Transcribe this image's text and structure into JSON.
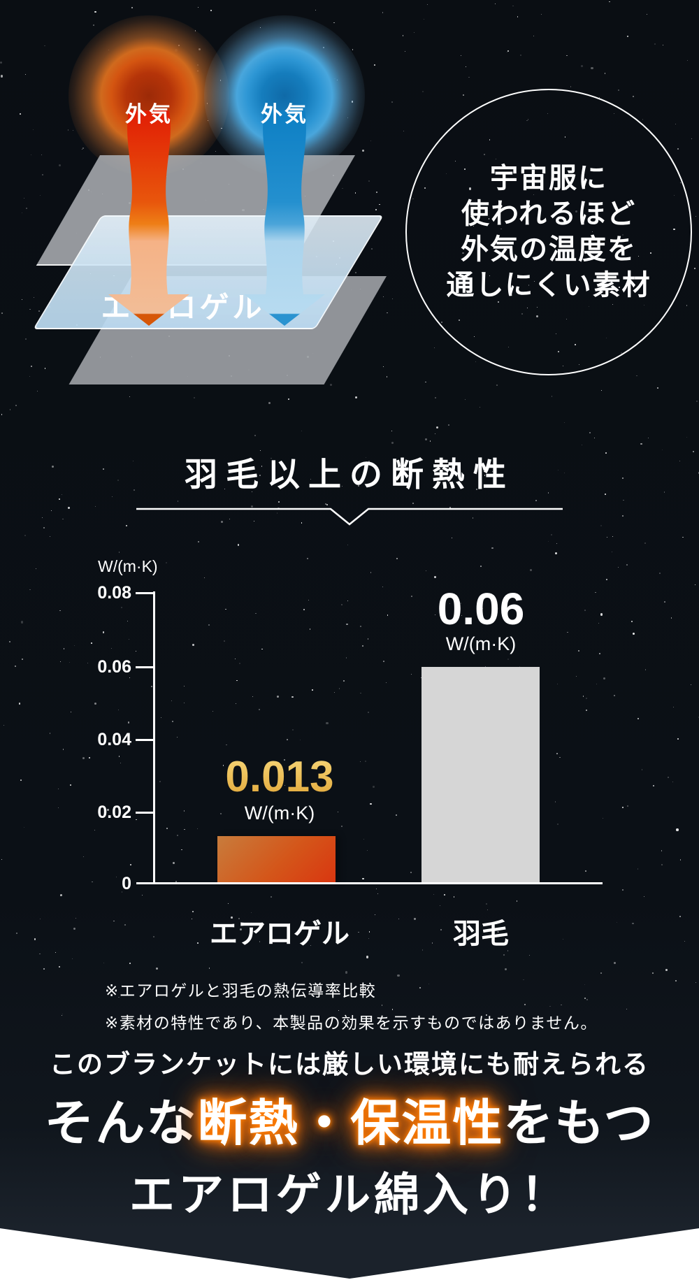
{
  "diagram": {
    "hot_air_label": "外気",
    "cold_air_label": "外気",
    "aerogel_label": "エアロゲル",
    "badge": {
      "lines": [
        "宇宙服に",
        "使われるほど",
        "外気の温度を",
        "通しにくい素材"
      ]
    }
  },
  "chart_data": {
    "type": "bar",
    "title": "羽毛以上の断熱性",
    "unit": "W/(m·K)",
    "ylabel": "W/(m·K)",
    "categories": [
      "エアロゲル",
      "羽毛"
    ],
    "values": [
      0.013,
      0.06
    ],
    "value_labels": [
      "0.013",
      "0.06"
    ],
    "yticks": [
      "0.08",
      "0.06",
      "0.04",
      "0.02",
      "0"
    ],
    "ylim": [
      0,
      0.08
    ],
    "grid": false,
    "legend": "none",
    "bar_colors": [
      "#d9480f",
      "#d6d6d6"
    ],
    "notes": [
      "※エアロゲルと羽毛の熱伝導率比較",
      "※素材の特性であり、本製品の効果を示すものではありません。"
    ]
  },
  "footer": {
    "line1": "このブランケットには厳しい環境にも耐えられる",
    "line2_prefix": "そんな",
    "line2_highlight": "断熱・保温性",
    "line2_suffix": "をもつ",
    "line3": "エアロゲル綿入り！"
  },
  "colors": {
    "background": "#0b1016",
    "accent_orange_glow": "#f97312",
    "gold_text": "#eebb4d",
    "bar_orange_start": "#c87c3c",
    "bar_orange_end": "#d93610",
    "bar_gray": "#d6d6d6",
    "hot_arrow": "#e11d05",
    "cold_arrow": "#1080c6"
  }
}
